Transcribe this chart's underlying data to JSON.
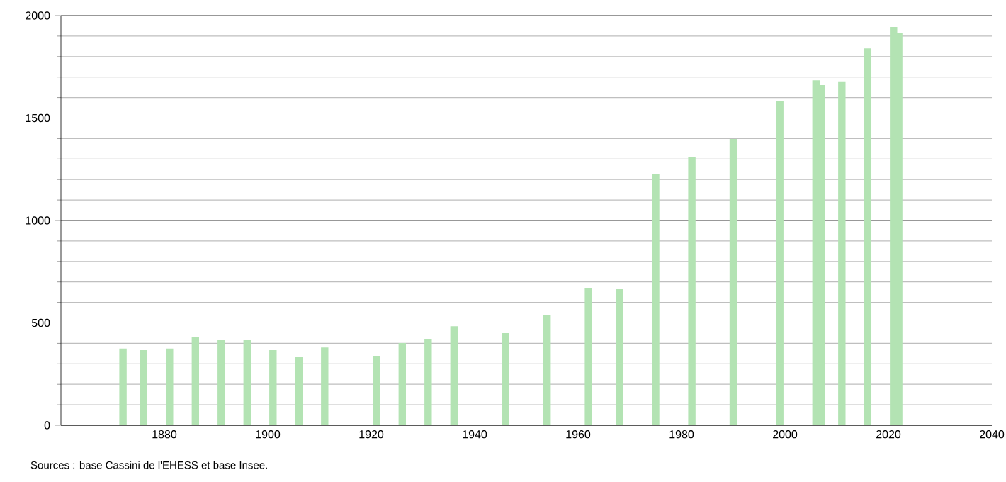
{
  "chart_data": {
    "type": "bar",
    "series": [
      {
        "color": "#b3e3b3",
        "x": [
          1872,
          1876,
          1881,
          1886,
          1891,
          1896,
          1901,
          1906,
          1911,
          1921,
          1926,
          1931,
          1936,
          1946,
          1954,
          1962,
          1968,
          1975,
          1982,
          1990,
          1999,
          2006,
          2007,
          2011,
          2016,
          2021,
          2022
        ],
        "values": [
          375,
          367,
          375,
          429,
          415,
          415,
          367,
          332,
          380,
          339,
          401,
          422,
          484,
          450,
          540,
          671,
          664,
          1225,
          1308,
          1398,
          1585,
          1684,
          1661,
          1679,
          1840,
          1945,
          1917
        ]
      }
    ],
    "xlim": [
      1860,
      2040
    ],
    "ylim": [
      0,
      2000
    ],
    "xticks": [
      1880,
      1900,
      1920,
      1940,
      1960,
      1980,
      2000,
      2020,
      2040
    ],
    "yticks": [
      0,
      500,
      1000,
      1500,
      2000
    ],
    "grid": "y",
    "annotations": [
      "Sources : base Cassini de l'EHESS et base Insee."
    ]
  }
}
